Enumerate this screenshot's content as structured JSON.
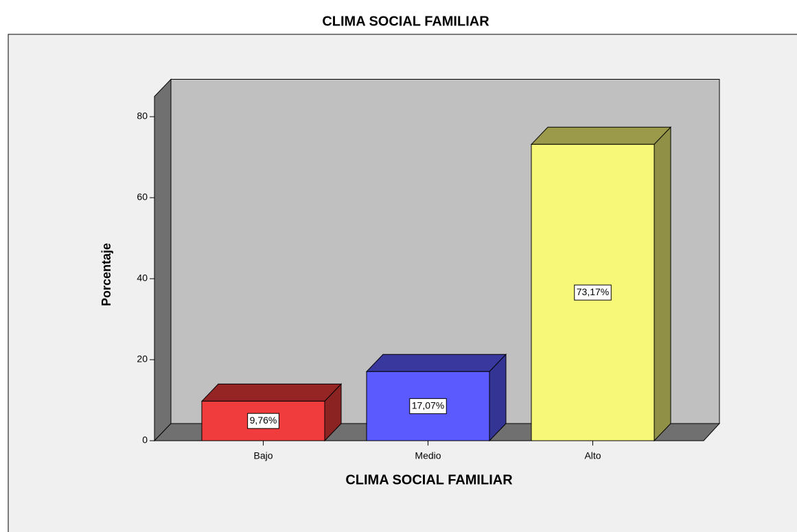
{
  "chart_data": {
    "type": "bar3d",
    "title": "CLIMA SOCIAL FAMILIAR",
    "x_label": "CLIMA SOCIAL FAMILIAR",
    "y_label": "Porcentaje",
    "categories": [
      "Bajo",
      "Medio",
      "Alto"
    ],
    "values": [
      9.76,
      17.07,
      73.17
    ],
    "value_labels": [
      "9,76%",
      "17,07%",
      "73,17%"
    ],
    "colors": [
      "#f03c3c",
      "#5a5aff",
      "#f8f878"
    ],
    "ylim": [
      0,
      85
    ],
    "yticks": [
      0,
      20,
      40,
      60,
      80
    ]
  }
}
